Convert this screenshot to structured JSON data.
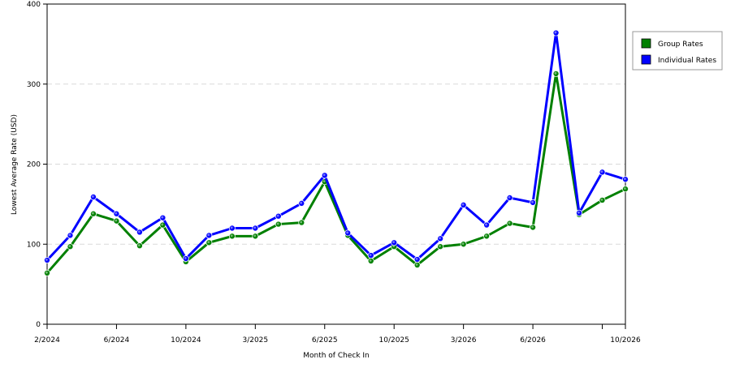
{
  "chart_data": {
    "type": "line",
    "xlabel": "Month of Check In",
    "ylabel": "Lowest Average Rate (USD)",
    "ylim": [
      0,
      400
    ],
    "yticks": [
      0,
      100,
      200,
      300,
      400
    ],
    "grid": "horizontal dashed",
    "legend_position": "right",
    "x_tick_labels": [
      "2/2024",
      "",
      "",
      "6/2024",
      "",
      "",
      "10/2024",
      "",
      "",
      "3/2025",
      "",
      "",
      "6/2025",
      "",
      "",
      "10/2025",
      "",
      "",
      "3/2026",
      "",
      "",
      "6/2026",
      "",
      "",
      "",
      "10/2026"
    ],
    "series": [
      {
        "name": "Group Rates",
        "color": "#008000",
        "values": [
          64,
          97,
          138,
          129,
          98,
          124,
          78,
          102,
          110,
          110,
          125,
          127,
          178,
          111,
          79,
          97,
          74,
          97,
          100,
          110,
          126,
          121,
          313,
          137,
          155,
          169
        ]
      },
      {
        "name": "Individual Rates",
        "color": "#0000ff",
        "values": [
          80,
          111,
          159,
          138,
          115,
          133,
          82,
          111,
          120,
          120,
          135,
          151,
          186,
          114,
          86,
          102,
          81,
          107,
          149,
          124,
          158,
          152,
          364,
          139,
          190,
          181
        ]
      }
    ]
  }
}
